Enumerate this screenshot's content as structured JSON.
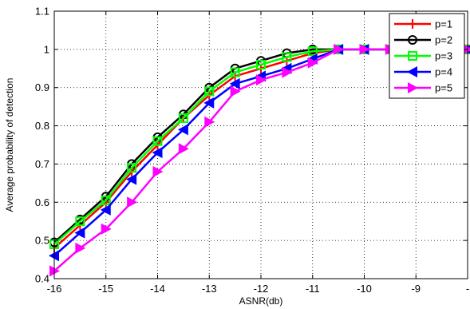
{
  "chart_data": {
    "type": "line",
    "title": "",
    "xlabel": "ASNR(db)",
    "ylabel": "Average probability of detection",
    "xlim": [
      -16,
      -8
    ],
    "ylim": [
      0.4,
      1.1
    ],
    "x_ticks": [
      "-16",
      "-15",
      "-14",
      "-13",
      "-12",
      "-11",
      "-10",
      "-9",
      "-"
    ],
    "y_ticks": [
      "0.4",
      "0.5",
      "0.6",
      "0.7",
      "0.8",
      "0.9",
      "1",
      "1.1"
    ],
    "grid": true,
    "legend_position": "top-right",
    "x": [
      -16,
      -15.5,
      -15,
      -14.5,
      -14,
      -13.5,
      -13,
      -12.5,
      -12,
      -11.5,
      -11,
      -10.5,
      -10,
      -9.5,
      -9,
      -8.5,
      -8
    ],
    "series": [
      {
        "name": "p=1",
        "color": "#ff0000",
        "marker": "plus",
        "values": [
          0.48,
          0.54,
          0.6,
          0.68,
          0.75,
          0.82,
          0.88,
          0.93,
          0.95,
          0.97,
          0.99,
          1.0,
          1.0,
          1.0,
          1.0,
          1.0,
          1.0
        ]
      },
      {
        "name": "p=2",
        "color": "#000000",
        "marker": "circle",
        "values": [
          0.495,
          0.555,
          0.615,
          0.7,
          0.77,
          0.83,
          0.9,
          0.95,
          0.97,
          0.99,
          1.0,
          1.0,
          1.0,
          1.0,
          1.0,
          1.0,
          1.0
        ]
      },
      {
        "name": "p=3",
        "color": "#00ff00",
        "marker": "square",
        "values": [
          0.49,
          0.55,
          0.605,
          0.69,
          0.76,
          0.82,
          0.89,
          0.94,
          0.96,
          0.98,
          0.995,
          1.0,
          1.0,
          1.0,
          1.0,
          1.0,
          1.0
        ]
      },
      {
        "name": "p=4",
        "color": "#0000ff",
        "marker": "triangle-left",
        "values": [
          0.46,
          0.52,
          0.58,
          0.66,
          0.73,
          0.79,
          0.86,
          0.91,
          0.93,
          0.95,
          0.975,
          1.0,
          1.0,
          1.0,
          1.0,
          1.0,
          1.0
        ]
      },
      {
        "name": "p=5",
        "color": "#ff00ff",
        "marker": "triangle-right",
        "values": [
          0.42,
          0.48,
          0.53,
          0.6,
          0.68,
          0.74,
          0.81,
          0.89,
          0.92,
          0.94,
          0.965,
          1.0,
          1.0,
          1.0,
          1.0,
          1.0,
          1.0
        ]
      }
    ]
  }
}
